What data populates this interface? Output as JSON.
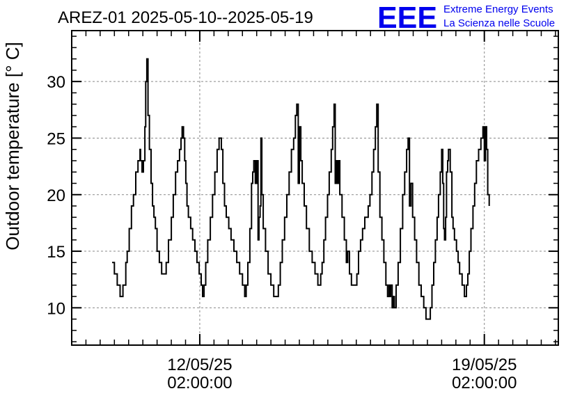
{
  "header": {
    "title": "AREZ-01 2025-05-10--2025-05-19",
    "logo_text": "EEE",
    "logo_line1": "Extreme Energy Events",
    "logo_line2": "La Scienza nelle Scuole",
    "logo_color": "#0000ee"
  },
  "chart_data": {
    "type": "line",
    "title": "AREZ-01 2025-05-10--2025-05-19",
    "ylabel": "Outdoor temperature [° C]",
    "xlabel": "",
    "ylim": [
      6.7,
      34.5
    ],
    "xlim": [
      -4.5,
      12.6
    ],
    "y_ticks": [
      10,
      15,
      20,
      25,
      30
    ],
    "x_ticks": [
      {
        "x": 0,
        "line1": "12/05/25",
        "line2": "02:00:00"
      },
      {
        "x": 10,
        "line1": "19/05/25",
        "line2": "02:00:00"
      }
    ],
    "grid": true,
    "line_color": "#000000",
    "series": [
      {
        "x_unit": "days since 12/05/25 02:00:00",
        "points": [
          [
            -3.08,
            14
          ],
          [
            -3.0,
            13
          ],
          [
            -2.9,
            12
          ],
          [
            -2.8,
            11
          ],
          [
            -2.7,
            12
          ],
          [
            -2.6,
            14
          ],
          [
            -2.55,
            15
          ],
          [
            -2.48,
            17
          ],
          [
            -2.4,
            19
          ],
          [
            -2.33,
            20
          ],
          [
            -2.25,
            22
          ],
          [
            -2.17,
            23
          ],
          [
            -2.1,
            24
          ],
          [
            -2.08,
            23
          ],
          [
            -2.03,
            22
          ],
          [
            -1.98,
            23
          ],
          [
            -1.93,
            26
          ],
          [
            -1.9,
            30
          ],
          [
            -1.86,
            32
          ],
          [
            -1.82,
            27
          ],
          [
            -1.77,
            24
          ],
          [
            -1.71,
            21
          ],
          [
            -1.66,
            19
          ],
          [
            -1.61,
            18
          ],
          [
            -1.56,
            17
          ],
          [
            -1.5,
            15
          ],
          [
            -1.42,
            14
          ],
          [
            -1.34,
            13
          ],
          [
            -1.18,
            14
          ],
          [
            -1.1,
            16
          ],
          [
            -1.0,
            18
          ],
          [
            -0.93,
            20
          ],
          [
            -0.85,
            22
          ],
          [
            -0.78,
            23
          ],
          [
            -0.71,
            24
          ],
          [
            -0.66,
            25
          ],
          [
            -0.62,
            26
          ],
          [
            -0.57,
            25
          ],
          [
            -0.53,
            23
          ],
          [
            -0.49,
            21
          ],
          [
            -0.45,
            19
          ],
          [
            -0.4,
            18
          ],
          [
            -0.32,
            17
          ],
          [
            -0.25,
            16
          ],
          [
            -0.17,
            15
          ],
          [
            -0.1,
            14
          ],
          [
            -0.02,
            13
          ],
          [
            0.05,
            12
          ],
          [
            0.1,
            11
          ],
          [
            0.15,
            12
          ],
          [
            0.21,
            14
          ],
          [
            0.28,
            16
          ],
          [
            0.37,
            18
          ],
          [
            0.45,
            20
          ],
          [
            0.53,
            22
          ],
          [
            0.61,
            24
          ],
          [
            0.68,
            25
          ],
          [
            0.76,
            24
          ],
          [
            0.81,
            21
          ],
          [
            0.87,
            19
          ],
          [
            0.93,
            18
          ],
          [
            1.02,
            17
          ],
          [
            1.1,
            16
          ],
          [
            1.2,
            15
          ],
          [
            1.3,
            14
          ],
          [
            1.4,
            13
          ],
          [
            1.5,
            12
          ],
          [
            1.58,
            11
          ],
          [
            1.63,
            12
          ],
          [
            1.69,
            14
          ],
          [
            1.76,
            17
          ],
          [
            1.82,
            21
          ],
          [
            1.86,
            22
          ],
          [
            1.9,
            23
          ],
          [
            1.95,
            21
          ],
          [
            2.0,
            23
          ],
          [
            2.05,
            16
          ],
          [
            2.08,
            18
          ],
          [
            2.12,
            19
          ],
          [
            2.15,
            25
          ],
          [
            2.18,
            20
          ],
          [
            2.23,
            17
          ],
          [
            2.31,
            15
          ],
          [
            2.4,
            13
          ],
          [
            2.5,
            12
          ],
          [
            2.6,
            11
          ],
          [
            2.7,
            11
          ],
          [
            2.76,
            12
          ],
          [
            2.83,
            14
          ],
          [
            2.9,
            16
          ],
          [
            2.98,
            18
          ],
          [
            3.06,
            20
          ],
          [
            3.14,
            22
          ],
          [
            3.22,
            24
          ],
          [
            3.3,
            25
          ],
          [
            3.36,
            27
          ],
          [
            3.41,
            28
          ],
          [
            3.46,
            21
          ],
          [
            3.5,
            26
          ],
          [
            3.55,
            23
          ],
          [
            3.6,
            21
          ],
          [
            3.67,
            19
          ],
          [
            3.75,
            17
          ],
          [
            3.85,
            15
          ],
          [
            3.95,
            14
          ],
          [
            4.05,
            13
          ],
          [
            4.15,
            12
          ],
          [
            4.25,
            13
          ],
          [
            4.3,
            14
          ],
          [
            4.36,
            16
          ],
          [
            4.42,
            18
          ],
          [
            4.49,
            20
          ],
          [
            4.55,
            22
          ],
          [
            4.62,
            24
          ],
          [
            4.67,
            26
          ],
          [
            4.72,
            28
          ],
          [
            4.76,
            21
          ],
          [
            4.8,
            23
          ],
          [
            4.84,
            21
          ],
          [
            4.88,
            23
          ],
          [
            4.92,
            20
          ],
          [
            5.0,
            18
          ],
          [
            5.08,
            16
          ],
          [
            5.15,
            14
          ],
          [
            5.2,
            15
          ],
          [
            5.26,
            13
          ],
          [
            5.33,
            12
          ],
          [
            5.52,
            13
          ],
          [
            5.58,
            15
          ],
          [
            5.65,
            16
          ],
          [
            5.72,
            17
          ],
          [
            5.8,
            18
          ],
          [
            5.88,
            18
          ],
          [
            5.92,
            19
          ],
          [
            5.98,
            20
          ],
          [
            6.05,
            22
          ],
          [
            6.11,
            24
          ],
          [
            6.17,
            26
          ],
          [
            6.22,
            28
          ],
          [
            6.27,
            22
          ],
          [
            6.33,
            18
          ],
          [
            6.4,
            16
          ],
          [
            6.47,
            14
          ],
          [
            6.54,
            12
          ],
          [
            6.6,
            11
          ],
          [
            6.65,
            12
          ],
          [
            6.68,
            11
          ],
          [
            6.71,
            12
          ],
          [
            6.76,
            10
          ],
          [
            6.8,
            11
          ],
          [
            6.84,
            10
          ],
          [
            6.9,
            12
          ],
          [
            6.97,
            14
          ],
          [
            7.05,
            17
          ],
          [
            7.13,
            20
          ],
          [
            7.2,
            22
          ],
          [
            7.27,
            24
          ],
          [
            7.32,
            25
          ],
          [
            7.37,
            19
          ],
          [
            7.42,
            21
          ],
          [
            7.48,
            18
          ],
          [
            7.55,
            16
          ],
          [
            7.62,
            14
          ],
          [
            7.7,
            12
          ],
          [
            7.78,
            11
          ],
          [
            7.87,
            10
          ],
          [
            7.95,
            9
          ],
          [
            8.1,
            10
          ],
          [
            8.16,
            12
          ],
          [
            8.22,
            14
          ],
          [
            8.28,
            16
          ],
          [
            8.34,
            18
          ],
          [
            8.39,
            20
          ],
          [
            8.45,
            22
          ],
          [
            8.5,
            24
          ],
          [
            8.54,
            21
          ],
          [
            8.57,
            17
          ],
          [
            8.6,
            16
          ],
          [
            8.64,
            18
          ],
          [
            8.67,
            22
          ],
          [
            8.71,
            23
          ],
          [
            8.74,
            24
          ],
          [
            8.8,
            22
          ],
          [
            8.86,
            18
          ],
          [
            8.9,
            17
          ],
          [
            8.95,
            16
          ],
          [
            9.02,
            15
          ],
          [
            9.08,
            14
          ],
          [
            9.13,
            13
          ],
          [
            9.22,
            12
          ],
          [
            9.3,
            11
          ],
          [
            9.37,
            12
          ],
          [
            9.42,
            13
          ],
          [
            9.47,
            15
          ],
          [
            9.53,
            17
          ],
          [
            9.6,
            19
          ],
          [
            9.66,
            21
          ],
          [
            9.72,
            23
          ],
          [
            9.8,
            24
          ],
          [
            9.88,
            25
          ],
          [
            9.95,
            26
          ],
          [
            10.0,
            23
          ],
          [
            10.04,
            26
          ],
          [
            10.08,
            24
          ],
          [
            10.12,
            20
          ],
          [
            10.17,
            19
          ]
        ]
      }
    ]
  }
}
